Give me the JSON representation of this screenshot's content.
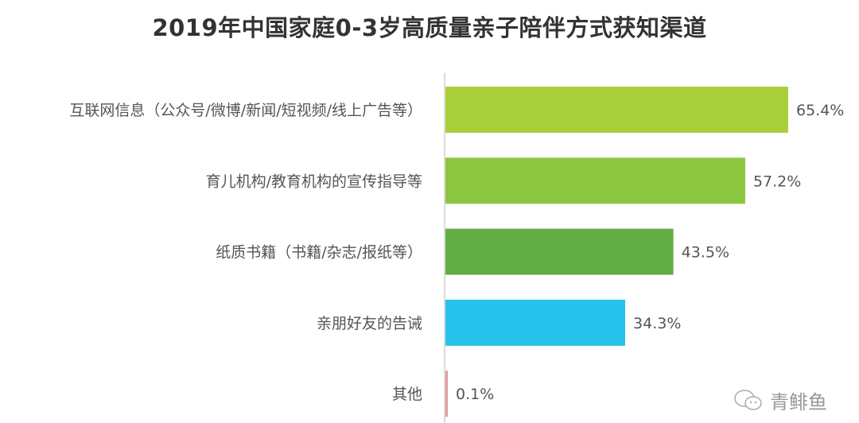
{
  "chart_data": {
    "type": "bar",
    "orientation": "horizontal",
    "title": "2019年中国家庭0-3岁高质量亲子陪伴方式获知渠道",
    "categories": [
      "互联网信息（公众号/微博/新闻/短视频/线上广告等）",
      "育儿机构/教育机构的宣传指导等",
      "纸质书籍（书籍/杂志/报纸等）",
      "亲朋好友的告诫",
      "其他"
    ],
    "values": [
      65.4,
      57.2,
      43.5,
      34.3,
      0.1
    ],
    "value_labels": [
      "65.4%",
      "57.2%",
      "43.5%",
      "34.3%",
      "0.1%"
    ],
    "colors": [
      "#a9cf3b",
      "#8cc640",
      "#63ad47",
      "#27c3ec",
      "#e39aa0"
    ],
    "unit": "%",
    "grid": false,
    "legend": "none"
  },
  "watermark": {
    "text": "青鲱鱼",
    "icon": "wechat-icon"
  }
}
